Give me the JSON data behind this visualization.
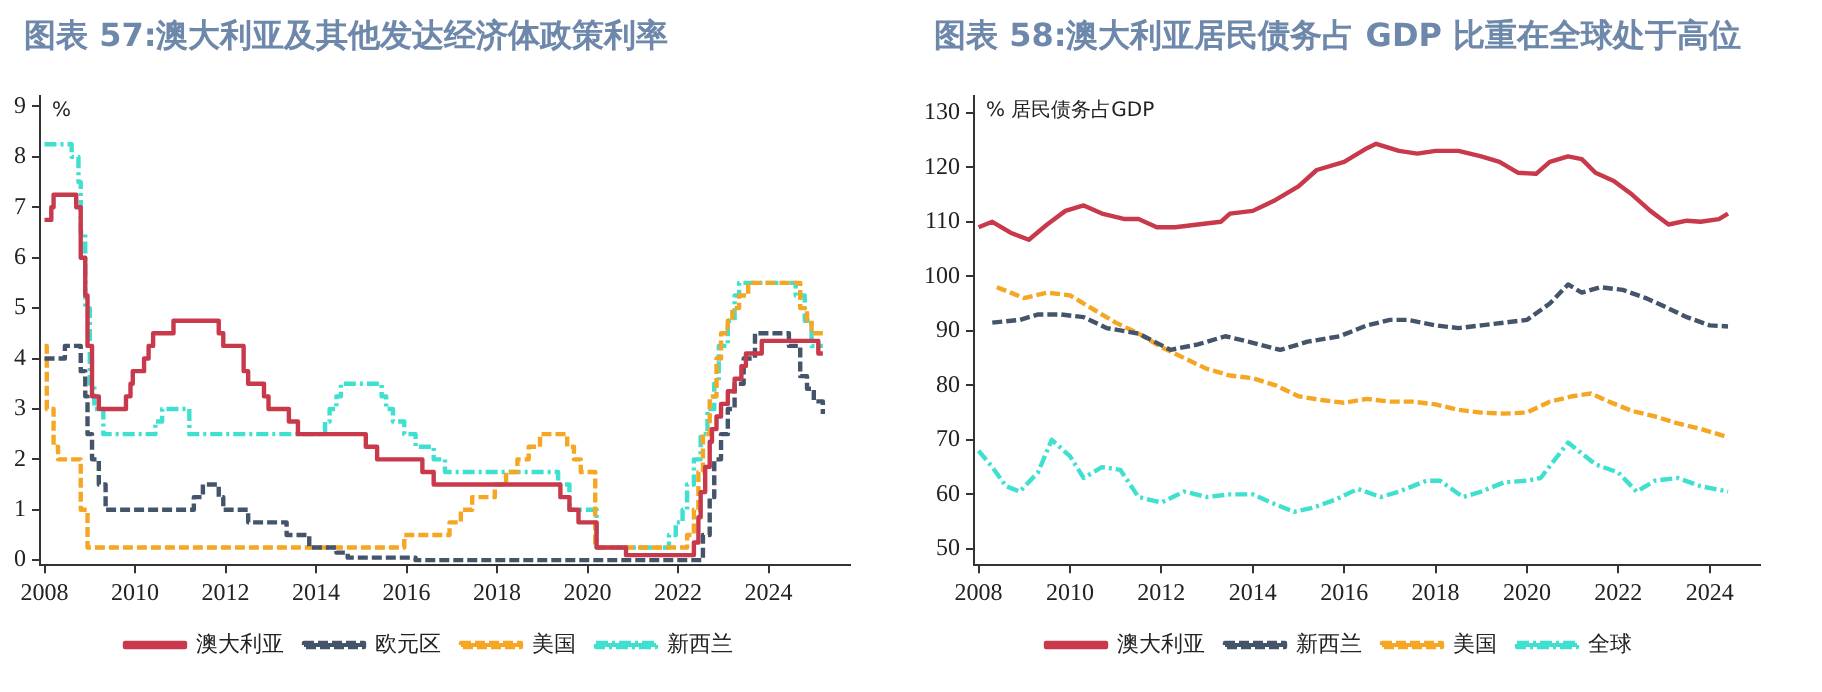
{
  "chart_data": [
    {
      "type": "step",
      "title": "图表 57:澳大利亚及其他发达经济体政策利率",
      "ylabel": "%",
      "xlim": [
        2007.9,
        2025.8
      ],
      "xticks": [
        2008,
        2010,
        2012,
        2014,
        2016,
        2018,
        2020,
        2022,
        2024
      ],
      "ylim": [
        -0.1,
        9.2
      ],
      "yticks": [
        0,
        1,
        2,
        3,
        4,
        5,
        6,
        7,
        8,
        9
      ],
      "grid": false,
      "legend": "bottom",
      "marker": "none",
      "series": [
        {
          "name": "澳大利亚",
          "color": "#c8394b",
          "line_style": "solid",
          "x": [
            2008.0,
            2008.15,
            2008.2,
            2008.7,
            2008.8,
            2008.9,
            2008.95,
            2009.05,
            2009.2,
            2009.8,
            2009.9,
            2009.95,
            2010.2,
            2010.3,
            2010.4,
            2010.85,
            2011.85,
            2011.95,
            2012.4,
            2012.5,
            2012.85,
            2012.95,
            2013.4,
            2013.6,
            2015.1,
            2015.35,
            2016.35,
            2016.6,
            2019.4,
            2019.6,
            2019.8,
            2020.2,
            2020.85,
            2022.35,
            2022.45,
            2022.5,
            2022.6,
            2022.7,
            2022.75,
            2022.85,
            2022.95,
            2023.1,
            2023.25,
            2023.4,
            2023.5,
            2023.85,
            2025.1,
            2025.2
          ],
          "values": [
            6.75,
            7.0,
            7.25,
            7.0,
            6.0,
            5.25,
            4.25,
            3.25,
            3.0,
            3.25,
            3.5,
            3.75,
            4.0,
            4.25,
            4.5,
            4.75,
            4.5,
            4.25,
            3.75,
            3.5,
            3.25,
            3.0,
            2.75,
            2.5,
            2.25,
            2.0,
            1.75,
            1.5,
            1.25,
            1.0,
            0.75,
            0.25,
            0.1,
            0.35,
            0.85,
            1.35,
            1.85,
            2.35,
            2.6,
            2.85,
            3.1,
            3.35,
            3.6,
            3.85,
            4.1,
            4.35,
            4.1,
            4.1
          ]
        },
        {
          "name": "欧元区",
          "color": "#44546a",
          "line_style": "dashed",
          "x": [
            2008.0,
            2008.45,
            2008.8,
            2008.9,
            2008.95,
            2009.05,
            2009.2,
            2009.35,
            2011.3,
            2011.5,
            2011.85,
            2011.95,
            2012.5,
            2013.35,
            2013.85,
            2014.45,
            2014.7,
            2016.2,
            2022.55,
            2022.7,
            2022.8,
            2022.95,
            2023.1,
            2023.25,
            2023.45,
            2023.7,
            2024.45,
            2024.7,
            2024.85,
            2025.0,
            2025.2
          ],
          "values": [
            4.0,
            4.25,
            3.75,
            3.25,
            2.5,
            2.0,
            1.5,
            1.0,
            1.25,
            1.5,
            1.25,
            1.0,
            0.75,
            0.5,
            0.25,
            0.15,
            0.05,
            0.0,
            0.5,
            1.25,
            2.0,
            2.5,
            3.0,
            3.5,
            4.0,
            4.5,
            4.25,
            3.65,
            3.4,
            3.15,
            2.9
          ]
        },
        {
          "name": "美国",
          "color": "#f5a623",
          "line_style": "dashed",
          "x": [
            2008.0,
            2008.05,
            2008.2,
            2008.3,
            2008.8,
            2008.95,
            2015.95,
            2016.95,
            2017.2,
            2017.45,
            2017.95,
            2018.2,
            2018.45,
            2018.7,
            2018.95,
            2019.55,
            2019.7,
            2019.85,
            2020.17,
            2022.2,
            2022.35,
            2022.45,
            2022.55,
            2022.7,
            2022.85,
            2022.95,
            2023.1,
            2023.2,
            2023.35,
            2023.55,
            2024.7,
            2024.85,
            2024.95,
            2025.2
          ],
          "values": [
            4.25,
            3.0,
            2.25,
            2.0,
            1.0,
            0.25,
            0.5,
            0.75,
            1.0,
            1.25,
            1.5,
            1.75,
            2.0,
            2.25,
            2.5,
            2.25,
            2.0,
            1.75,
            0.25,
            0.5,
            1.0,
            1.75,
            2.5,
            3.25,
            4.0,
            4.5,
            4.75,
            5.0,
            5.25,
            5.5,
            5.0,
            4.75,
            4.5,
            4.5
          ]
        },
        {
          "name": "新西兰",
          "color": "#40e0d0",
          "line_style": "dotted",
          "x": [
            2008.0,
            2008.6,
            2008.75,
            2008.8,
            2008.9,
            2009.0,
            2009.1,
            2009.3,
            2010.45,
            2010.6,
            2011.2,
            2014.2,
            2014.3,
            2014.45,
            2014.55,
            2015.45,
            2015.55,
            2015.7,
            2015.95,
            2016.2,
            2016.6,
            2016.85,
            2019.35,
            2019.6,
            2020.2,
            2021.8,
            2021.95,
            2022.1,
            2022.2,
            2022.35,
            2022.5,
            2022.65,
            2022.8,
            2022.9,
            2023.1,
            2023.25,
            2023.35,
            2024.6,
            2024.8,
            2024.95,
            2025.2
          ],
          "values": [
            8.25,
            8.0,
            7.5,
            6.5,
            5.0,
            3.5,
            3.0,
            2.5,
            2.75,
            3.0,
            2.5,
            2.75,
            3.0,
            3.25,
            3.5,
            3.25,
            3.0,
            2.75,
            2.5,
            2.25,
            2.0,
            1.75,
            1.5,
            1.0,
            0.25,
            0.5,
            0.75,
            1.0,
            1.5,
            2.0,
            2.5,
            3.0,
            3.5,
            4.25,
            4.75,
            5.25,
            5.5,
            5.25,
            4.75,
            4.25,
            4.25
          ]
        }
      ]
    },
    {
      "type": "line",
      "title": "图表 58:澳大利亚居民债务占 GDP 比重在全球处于高位",
      "ylabel": "% 居民债务占GDP",
      "xlim": [
        2007.9,
        2025.1
      ],
      "xticks": [
        2008,
        2010,
        2012,
        2014,
        2016,
        2018,
        2020,
        2022,
        2024
      ],
      "ylim": [
        47,
        133
      ],
      "yticks": [
        50,
        60,
        70,
        80,
        90,
        100,
        110,
        120,
        130
      ],
      "grid": false,
      "legend": "bottom",
      "marker": "none",
      "series": [
        {
          "name": "澳大利亚",
          "color": "#c8394b",
          "line_style": "solid",
          "x": [
            2008.0,
            2008.3,
            2008.7,
            2009.1,
            2009.5,
            2009.9,
            2010.3,
            2010.7,
            2011.2,
            2011.5,
            2011.9,
            2012.3,
            2012.8,
            2013.3,
            2013.5,
            2014.0,
            2014.5,
            2015.0,
            2015.4,
            2016.0,
            2016.5,
            2016.7,
            2017.2,
            2017.6,
            2018.0,
            2018.5,
            2019.0,
            2019.4,
            2019.8,
            2020.2,
            2020.5,
            2020.9,
            2021.2,
            2021.5,
            2021.9,
            2022.3,
            2022.7,
            2023.1,
            2023.5,
            2023.8,
            2024.2,
            2024.4
          ],
          "values": [
            109,
            110,
            108,
            106.7,
            109.5,
            112,
            113,
            111.5,
            110.5,
            110.5,
            109,
            109,
            109.5,
            110,
            111.5,
            112,
            114,
            116.5,
            119.5,
            121,
            123.5,
            124.3,
            123,
            122.5,
            123,
            123,
            122,
            121,
            119,
            118.8,
            121,
            122,
            121.5,
            119,
            117.5,
            115,
            112,
            109.5,
            110.2,
            110,
            110.5,
            111.5
          ]
        },
        {
          "name": "新西兰",
          "color": "#44546a",
          "line_style": "dashed",
          "x": [
            2008.3,
            2008.9,
            2009.3,
            2009.8,
            2010.3,
            2010.8,
            2011.5,
            2012.2,
            2012.8,
            2013.4,
            2013.9,
            2014.6,
            2015.2,
            2015.9,
            2016.5,
            2017.0,
            2017.4,
            2018.0,
            2018.5,
            2019.0,
            2019.5,
            2020.0,
            2020.5,
            2020.9,
            2021.2,
            2021.6,
            2022.1,
            2022.6,
            2023.0,
            2023.5,
            2024.0,
            2024.4
          ],
          "values": [
            91.5,
            92,
            93,
            93,
            92.5,
            90.5,
            89.5,
            86.5,
            87.5,
            89,
            88,
            86.5,
            88,
            89,
            91,
            92,
            92,
            91,
            90.5,
            91,
            91.5,
            92,
            95,
            98.5,
            97,
            98,
            97.5,
            96,
            94.5,
            92.5,
            91,
            90.8
          ]
        },
        {
          "name": "美国",
          "color": "#f5a623",
          "line_style": "dashed",
          "x": [
            2008.4,
            2008.7,
            2009.0,
            2009.5,
            2010.0,
            2010.5,
            2011.0,
            2011.5,
            2012.0,
            2012.5,
            2013.0,
            2013.5,
            2014.0,
            2014.5,
            2015.0,
            2015.5,
            2016.0,
            2016.5,
            2017.0,
            2017.5,
            2018.0,
            2018.5,
            2019.0,
            2019.5,
            2020.0,
            2020.5,
            2021.0,
            2021.4,
            2021.8,
            2022.3,
            2022.8,
            2023.3,
            2023.8,
            2024.4
          ],
          "values": [
            98,
            97,
            96,
            97,
            96.5,
            94,
            91.5,
            89.5,
            87,
            85,
            83,
            81.8,
            81.3,
            80,
            78,
            77.3,
            76.8,
            77.5,
            77,
            77,
            76.5,
            75.5,
            75,
            74.8,
            75,
            77,
            78,
            78.5,
            77,
            75.3,
            74.3,
            73,
            72,
            70.5
          ]
        },
        {
          "name": "全球",
          "color": "#40e0d0",
          "line_style": "dotted",
          "x": [
            2008.0,
            2008.3,
            2008.6,
            2008.9,
            2009.3,
            2009.6,
            2010.0,
            2010.3,
            2010.7,
            2011.1,
            2011.5,
            2012.0,
            2012.5,
            2013.0,
            2013.5,
            2014.0,
            2014.4,
            2014.9,
            2015.3,
            2015.8,
            2016.3,
            2016.8,
            2017.2,
            2017.8,
            2018.1,
            2018.6,
            2019.0,
            2019.5,
            2020.0,
            2020.3,
            2020.9,
            2021.5,
            2022.0,
            2022.4,
            2022.8,
            2023.3,
            2023.8,
            2024.4
          ],
          "values": [
            68,
            65,
            61.5,
            60.5,
            64,
            70,
            67,
            63,
            65,
            64.5,
            59.5,
            58.5,
            60.5,
            59.5,
            60,
            60,
            58.5,
            56.8,
            57.5,
            59,
            61,
            59.5,
            60.5,
            62.5,
            62.5,
            59.5,
            60.5,
            62.2,
            62.5,
            63,
            69.5,
            65.5,
            64,
            60.5,
            62.5,
            63,
            61.5,
            60.5
          ]
        }
      ]
    }
  ]
}
